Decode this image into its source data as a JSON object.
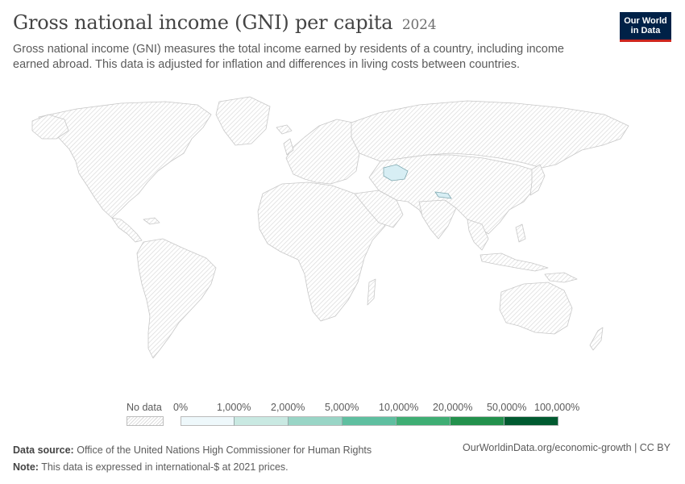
{
  "header": {
    "title": "Gross national income (GNI) per capita",
    "year": "2024",
    "subtitle": "Gross national income (GNI) measures the total income earned by residents of a country, including income earned abroad. This data is adjusted for inflation and differences in living costs between countries."
  },
  "logo": {
    "line1": "Our World",
    "line2": "in Data",
    "bg_color": "#002147",
    "accent_color": "#ce261e"
  },
  "legend": {
    "no_data_label": "No data",
    "bins": [
      {
        "label": "0%",
        "color": "#eef8fb"
      },
      {
        "label": "1,000%",
        "color": "#c9e9e2"
      },
      {
        "label": "2,000%",
        "color": "#99d5c6"
      },
      {
        "label": "5,000%",
        "color": "#5fbfa0"
      },
      {
        "label": "10,000%",
        "color": "#3fae74"
      },
      {
        "label": "20,000%",
        "color": "#23914d"
      },
      {
        "label": "50,000%",
        "color": "#005a30"
      }
    ],
    "max_label": "100,000%"
  },
  "map": {
    "no_data_fill": "hatched-grey",
    "highlighted_regions": [
      {
        "region": "Central Asia (Turkmenistan)",
        "bin": "0%"
      },
      {
        "region": "Nepal",
        "bin": "0%"
      }
    ]
  },
  "footer": {
    "source_label": "Data source:",
    "source_text": "Office of the United Nations High Commissioner for Human Rights",
    "note_label": "Note:",
    "note_text": "This data is expressed in international-$ at 2021 prices.",
    "url": "OurWorldinData.org/economic-growth | CC BY"
  }
}
